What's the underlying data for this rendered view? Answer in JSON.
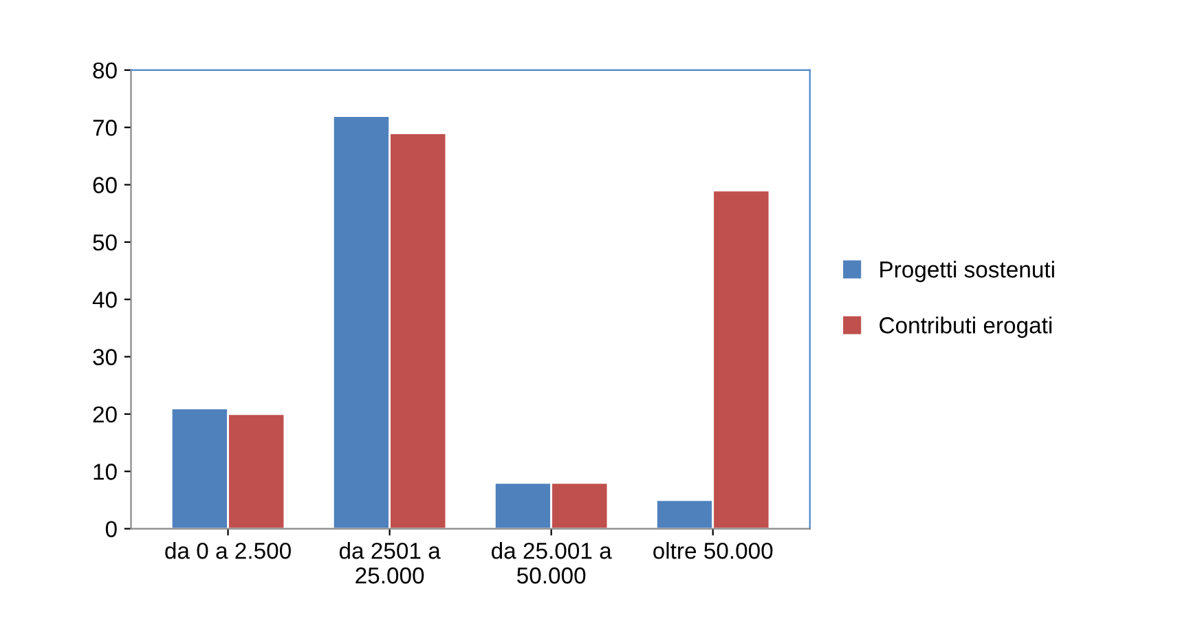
{
  "chart_data": {
    "type": "bar",
    "categories": [
      "da 0 a 2.500",
      "da 2501 a\n25.000",
      "da 25.001 a\n50.000",
      "oltre 50.000"
    ],
    "series": [
      {
        "name": "Progetti sostenuti",
        "color": "#4f81bd",
        "values": [
          21,
          72,
          8,
          5
        ]
      },
      {
        "name": "Contributi erogati",
        "color": "#c0504d",
        "values": [
          20,
          69,
          8,
          59
        ]
      }
    ],
    "ylim": [
      0,
      80
    ],
    "yticks": [
      0,
      10,
      20,
      30,
      40,
      50,
      60,
      70,
      80
    ],
    "grid": false,
    "legend": "right"
  }
}
